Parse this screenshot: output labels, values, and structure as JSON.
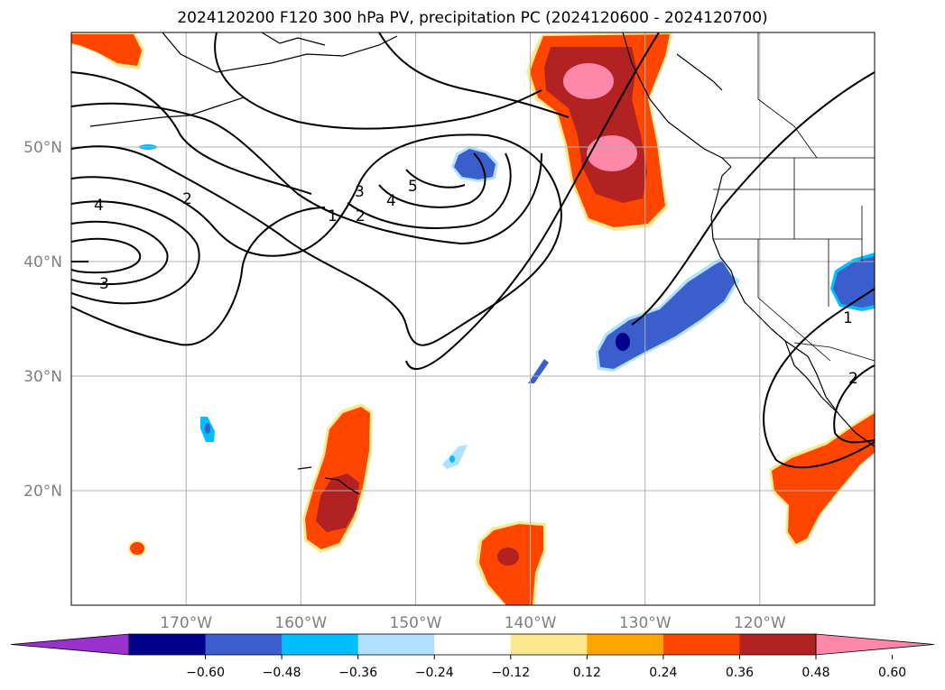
{
  "title": "2024120200 F120 300 hPa PV, precipitation PC (2024120600 - 2024120700)",
  "map": {
    "projection": "PlateCarree",
    "lon_range": [
      -180,
      -110
    ],
    "lat_range": [
      10,
      60
    ],
    "lat_ticks": [
      {
        "lat": 50,
        "label": "50°N"
      },
      {
        "lat": 40,
        "label": "40°N"
      },
      {
        "lat": 30,
        "label": "30°N"
      },
      {
        "lat": 20,
        "label": "20°N"
      }
    ],
    "lon_ticks": [
      {
        "lon": -170,
        "label": "170°W"
      },
      {
        "lon": -160,
        "label": "160°W"
      },
      {
        "lon": -150,
        "label": "150°W"
      },
      {
        "lon": -140,
        "label": "140°W"
      },
      {
        "lon": -130,
        "label": "130°W"
      },
      {
        "lon": -120,
        "label": "120°W"
      }
    ],
    "grid": true
  },
  "contour_labels": [
    "4",
    "2",
    "3",
    "1",
    "2",
    "3",
    "4",
    "5",
    "1",
    "2"
  ],
  "colorbar": {
    "extend": "both",
    "bounds": [
      -0.72,
      -0.6,
      -0.48,
      -0.36,
      -0.24,
      -0.12,
      0.12,
      0.24,
      0.36,
      0.48,
      0.6,
      0.72
    ],
    "colors": [
      "#9932cc",
      "#00008b",
      "#3a5fcd",
      "#00bfff",
      "#b0e2ff",
      "#ffffff",
      "#fce98f",
      "#ffa500",
      "#ff4500",
      "#b22222",
      "#ff88aa"
    ],
    "tick_labels": [
      "−0.60",
      "−0.48",
      "−0.36",
      "−0.24",
      "−0.12",
      "0.12",
      "0.24",
      "0.36",
      "0.48",
      "0.60"
    ]
  }
}
